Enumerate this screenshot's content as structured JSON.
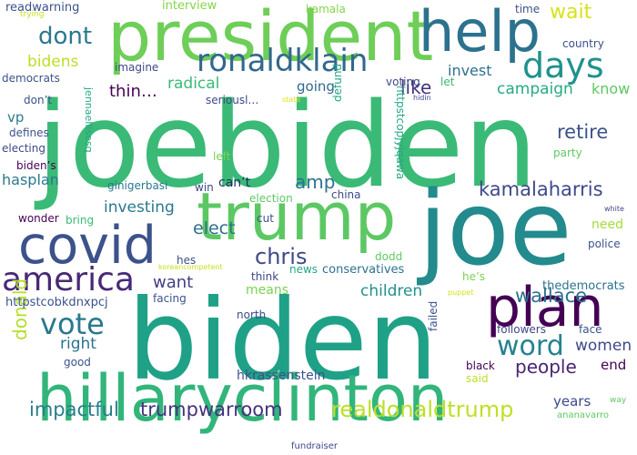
{
  "words": [
    {
      "text": "joebiden",
      "color": "#3aba76"
    },
    {
      "text": "biden",
      "color": "#1fa187"
    },
    {
      "text": "joe",
      "color": "#238a8d"
    },
    {
      "text": "president",
      "color": "#6ece58"
    },
    {
      "text": "trump",
      "color": "#5cc863"
    },
    {
      "text": "hillaryclinton",
      "color": "#31b57b"
    },
    {
      "text": "covid",
      "color": "#3b528b"
    },
    {
      "text": "help",
      "color": "#2c728e"
    },
    {
      "text": "plan",
      "color": "#440154"
    },
    {
      "text": "america",
      "color": "#482878"
    },
    {
      "text": "ronaldklain",
      "color": "#31688e"
    },
    {
      "text": "days",
      "color": "#20928c"
    },
    {
      "text": "word",
      "color": "#26828e"
    },
    {
      "text": "vote",
      "color": "#2a788e"
    },
    {
      "text": "realdonaldtrump",
      "color": "#bddf26"
    },
    {
      "text": "trumpwarroom",
      "color": "#46327e"
    },
    {
      "text": "impactful",
      "color": "#287d8e"
    },
    {
      "text": "chris",
      "color": "#3e4989"
    },
    {
      "text": "wallace",
      "color": "#2d708e"
    },
    {
      "text": "kamalaharris",
      "color": "#3e4989"
    },
    {
      "text": "dont",
      "color": "#2a788e"
    },
    {
      "text": "wait",
      "color": "#d8e219"
    },
    {
      "text": "retire",
      "color": "#3b528b"
    },
    {
      "text": "campaign",
      "color": "#25ab82"
    },
    {
      "text": "people",
      "color": "#482475"
    },
    {
      "text": "elect",
      "color": "#2e6f8e"
    },
    {
      "text": "children",
      "color": "#21918c"
    },
    {
      "text": "donald",
      "color": "#b5de2b"
    },
    {
      "text": "like",
      "color": "#46327e"
    },
    {
      "text": "amp",
      "color": "#2c728e"
    },
    {
      "text": "radical",
      "color": "#3aba76"
    },
    {
      "text": "investing",
      "color": "#2a788e"
    },
    {
      "text": "women",
      "color": "#3e4989"
    },
    {
      "text": "right",
      "color": "#2c728e"
    },
    {
      "text": "bidens",
      "color": "#bddf26"
    },
    {
      "text": "thin…",
      "color": "#440154"
    },
    {
      "text": "want",
      "color": "#433e85"
    },
    {
      "text": "know",
      "color": "#5ec962"
    },
    {
      "text": "years",
      "color": "#3e4989"
    },
    {
      "text": "vp",
      "color": "#287d8e"
    },
    {
      "text": "going",
      "color": "#31688e"
    },
    {
      "text": "hasplan",
      "color": "#2a788e"
    },
    {
      "text": "invest",
      "color": "#2c728e"
    },
    {
      "text": "end",
      "color": "#440154"
    },
    {
      "text": "means",
      "color": "#7ad151"
    },
    {
      "text": "need",
      "color": "#a5db36"
    },
    {
      "text": "can’t",
      "color": "#1f2f5e"
    },
    {
      "text": "hkrassenstein",
      "color": "#3b528b"
    },
    {
      "text": "conservatives",
      "color": "#2c728e"
    },
    {
      "text": "httpstcobkdnxpcj",
      "color": "#3b528b"
    },
    {
      "text": "thedemocrats",
      "color": "#2c728e"
    },
    {
      "text": "interview",
      "color": "#86d549"
    },
    {
      "text": "readwarning",
      "color": "#3b528b"
    },
    {
      "text": "imagine",
      "color": "#3e4989"
    },
    {
      "text": "seriousl…",
      "color": "#3e4989"
    },
    {
      "text": "country",
      "color": "#3b528b"
    },
    {
      "text": "voting",
      "color": "#3e4989"
    },
    {
      "text": "democrats",
      "color": "#3b528b"
    },
    {
      "text": "don’t",
      "color": "#3b528b"
    },
    {
      "text": "defines",
      "color": "#3b528b"
    },
    {
      "text": "electing",
      "color": "#3e4989"
    },
    {
      "text": "biden’s",
      "color": "#440154"
    },
    {
      "text": "ginigerbasi",
      "color": "#2a788e"
    },
    {
      "text": "wonder",
      "color": "#440154"
    },
    {
      "text": "bring",
      "color": "#3aba76"
    },
    {
      "text": "hes",
      "color": "#3b528b"
    },
    {
      "text": "election",
      "color": "#5ec962"
    },
    {
      "text": "china",
      "color": "#3e4989"
    },
    {
      "text": "dodd",
      "color": "#5ec962"
    },
    {
      "text": "cut",
      "color": "#3b528b"
    },
    {
      "text": "police",
      "color": "#3b528b"
    },
    {
      "text": "think",
      "color": "#3e4989"
    },
    {
      "text": "news",
      "color": "#22a884"
    },
    {
      "text": "facing",
      "color": "#3b528b"
    },
    {
      "text": "north",
      "color": "#3e4989"
    },
    {
      "text": "followers",
      "color": "#3e4989"
    },
    {
      "text": "face",
      "color": "#3b528b"
    },
    {
      "text": "good",
      "color": "#3b528b"
    },
    {
      "text": "black",
      "color": "#440154"
    },
    {
      "text": "said",
      "color": "#bddf26"
    },
    {
      "text": "he’s",
      "color": "#7ad151"
    },
    {
      "text": "left",
      "color": "#7ad151"
    },
    {
      "text": "win",
      "color": "#3e4989"
    },
    {
      "text": "let",
      "color": "#3aba76"
    },
    {
      "text": "party",
      "color": "#5ec962"
    },
    {
      "text": "time",
      "color": "#3b528b"
    },
    {
      "text": "kamala",
      "color": "#86d549"
    },
    {
      "text": "white",
      "color": "#3e4989"
    },
    {
      "text": "way",
      "color": "#5ec962"
    },
    {
      "text": "fundraiser",
      "color": "#3e4989"
    },
    {
      "text": "ananavarro",
      "color": "#5ec962"
    },
    {
      "text": "trying",
      "color": "#c7e020"
    },
    {
      "text": "state",
      "color": "#d8e219"
    },
    {
      "text": "puppet",
      "color": "#d8e219"
    },
    {
      "text": "hidin",
      "color": "#3e4989"
    },
    {
      "text": "koreancompetent",
      "color": "#c7e020"
    },
    {
      "text": "jennaellisesq",
      "color": "#22a884"
    },
    {
      "text": "httpstcopjyjqawa",
      "color": "#22a884"
    },
    {
      "text": "defund",
      "color": "#22a884"
    },
    {
      "text": "failed",
      "color": "#3b528b"
    }
  ]
}
